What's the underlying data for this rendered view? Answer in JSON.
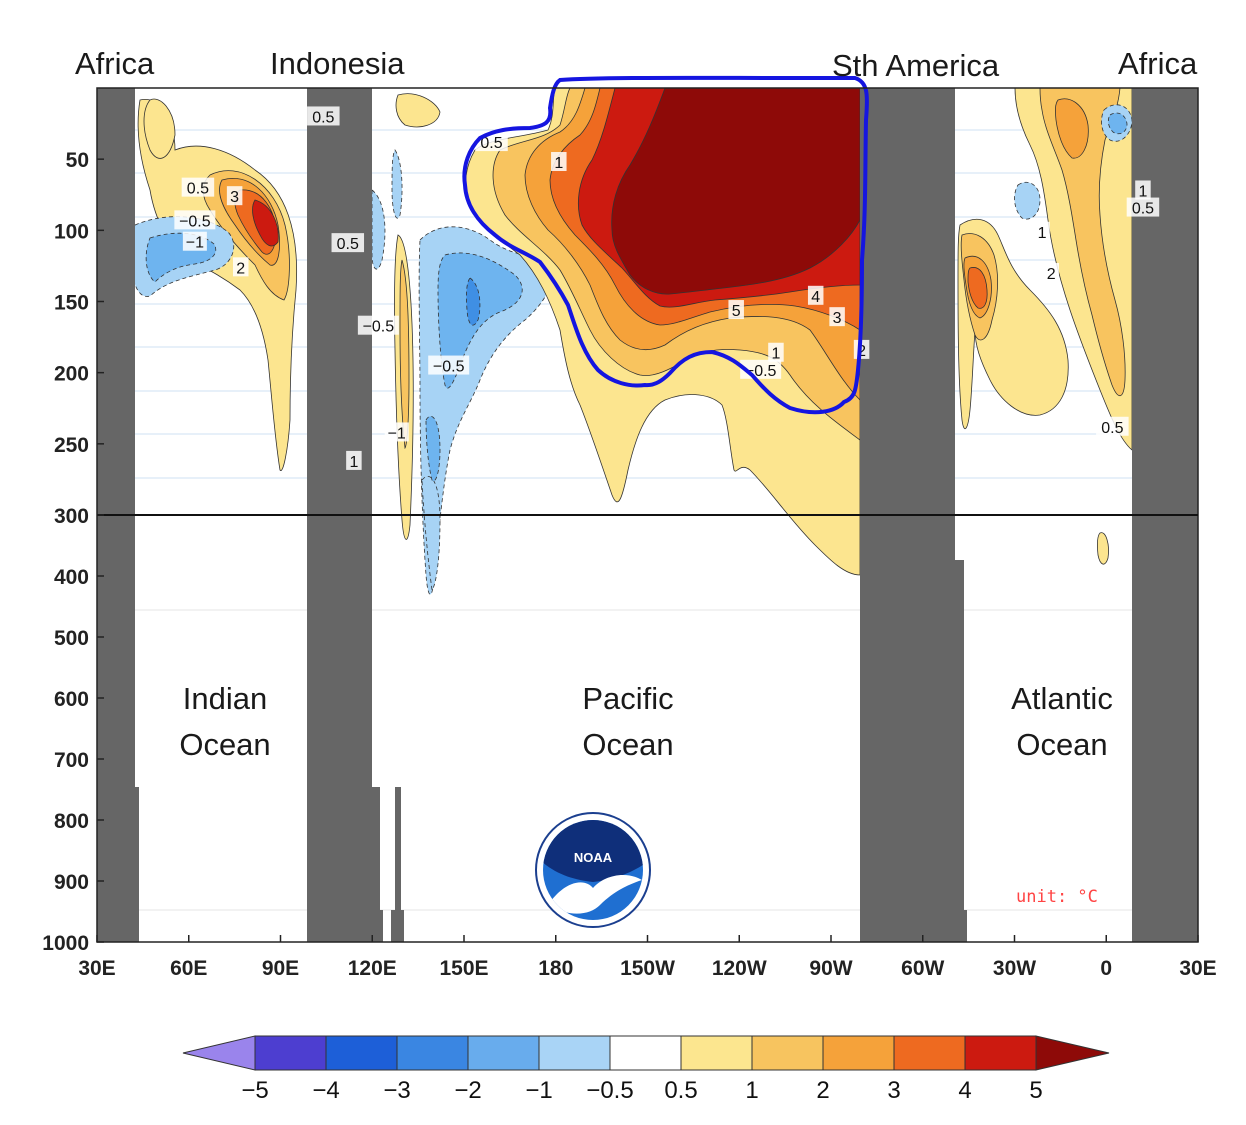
{
  "region_labels": {
    "africa_left": "Africa",
    "indonesia": "Indonesia",
    "south_america": "Sth America",
    "africa_right": "Africa"
  },
  "ocean_labels": {
    "indian": [
      "Indian",
      "Ocean"
    ],
    "pacific": [
      "Pacific",
      "Ocean"
    ],
    "atlantic": [
      "Atlantic",
      "Ocean"
    ]
  },
  "unit_label": "unit: °C",
  "logo_text": "NOAA",
  "colors": {
    "land": "#666666",
    "outline": "#1515e0",
    "warm_05": "#fce58f",
    "warm_1": "#f8c45f",
    "warm_2": "#f5a23a",
    "warm_3": "#ee6a20",
    "warm_4": "#cc1a10",
    "warm_5": "#8e0a08",
    "cool_05": "#a7d3f5",
    "cool_1": "#6eb4ef",
    "cool_2": "#3f8fe4"
  },
  "chart_data": {
    "type": "heatmap",
    "title": "",
    "xlabel": "",
    "ylabel": "",
    "x_ticks": [
      "30E",
      "60E",
      "90E",
      "120E",
      "150E",
      "180",
      "150W",
      "120W",
      "90W",
      "60W",
      "30W",
      "0",
      "30E"
    ],
    "x_range_deg_east": [
      30,
      390
    ],
    "y_ticks_upper": [
      50,
      100,
      150,
      200,
      250,
      300
    ],
    "y_ticks_lower": [
      300,
      400,
      500,
      600,
      700,
      800,
      900,
      1000
    ],
    "y_range": [
      0,
      1000
    ],
    "y_break": 300,
    "colorbar": {
      "ticks": [
        "−5",
        "−4",
        "−3",
        "−2",
        "−1",
        "−0.5",
        "0.5",
        "1",
        "2",
        "3",
        "4",
        "5"
      ],
      "colors": [
        "#9a84ec",
        "#4d3ed0",
        "#1d5fd8",
        "#3a86e2",
        "#68aced",
        "#a9d4f6",
        "#ffffff",
        "#fce68f",
        "#f7c45f",
        "#f5a23a",
        "#ee6a20",
        "#cc1a10",
        "#8e0a08"
      ]
    },
    "contour_labels": [
      {
        "text": "0.5",
        "lon": 104,
        "depth": 20
      },
      {
        "text": "0.5",
        "lon": 159,
        "depth": 38
      },
      {
        "text": "1",
        "lon": 181,
        "depth": 52
      },
      {
        "text": "0.5",
        "lon": 63,
        "depth": 70
      },
      {
        "text": "3",
        "lon": 75,
        "depth": 76
      },
      {
        "text": "−0.5",
        "lon": 62,
        "depth": 93
      },
      {
        "text": "−1",
        "lon": 62,
        "depth": 108
      },
      {
        "text": "2",
        "lon": 77,
        "depth": 126
      },
      {
        "text": "0.5",
        "lon": 112,
        "depth": 109
      },
      {
        "text": "−0.5",
        "lon": 122,
        "depth": 167
      },
      {
        "text": "−0.5",
        "lon": 145,
        "depth": 195
      },
      {
        "text": "−1",
        "lon": 128,
        "depth": 242
      },
      {
        "text": "1",
        "lon": 114,
        "depth": 262
      },
      {
        "text": "5",
        "lon": 239,
        "depth": 156
      },
      {
        "text": "4",
        "lon": 265,
        "depth": 146
      },
      {
        "text": "3",
        "lon": 272,
        "depth": 161
      },
      {
        "text": "1",
        "lon": 252,
        "depth": 186
      },
      {
        "text": "−0.5",
        "lon": 247,
        "depth": 198
      },
      {
        "text": "2",
        "lon": 280,
        "depth": 184
      },
      {
        "text": "1",
        "lon": 339,
        "depth": 101
      },
      {
        "text": "2",
        "lon": 342,
        "depth": 130
      },
      {
        "text": "1",
        "lon": 372,
        "depth": 72
      },
      {
        "text": "0.5",
        "lon": 372,
        "depth": 84
      },
      {
        "text": "0.5",
        "lon": 362,
        "depth": 238
      }
    ]
  }
}
